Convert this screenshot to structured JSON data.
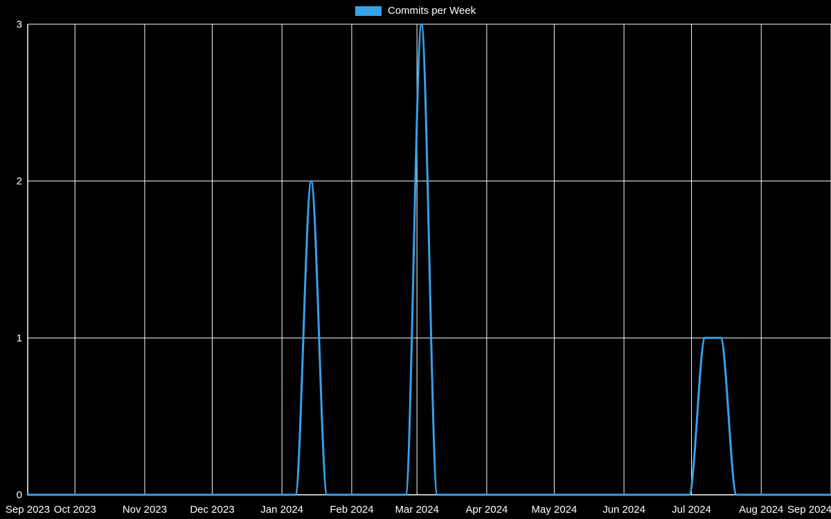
{
  "chart_data": {
    "type": "line",
    "title": "Commits per Week",
    "xlabel": "",
    "ylabel": "",
    "grid": true,
    "legend_position": "top-center",
    "background_color": "#000000",
    "grid_color": "#ffffff",
    "axis_color": "#ffffff",
    "text_color": "#ffffff",
    "ylim": [
      0,
      3
    ],
    "yticks": [
      0,
      1,
      2,
      3
    ],
    "xticks": [
      {
        "label": "Sep 2023",
        "date": "2023-09-10"
      },
      {
        "label": "Oct 2023",
        "date": "2023-10-01"
      },
      {
        "label": "Nov 2023",
        "date": "2023-11-01"
      },
      {
        "label": "Dec 2023",
        "date": "2023-12-01"
      },
      {
        "label": "Jan 2024",
        "date": "2024-01-01"
      },
      {
        "label": "Feb 2024",
        "date": "2024-02-01"
      },
      {
        "label": "Mar 2024",
        "date": "2024-03-01"
      },
      {
        "label": "Apr 2024",
        "date": "2024-04-01"
      },
      {
        "label": "May 2024",
        "date": "2024-05-01"
      },
      {
        "label": "Jun 2024",
        "date": "2024-06-01"
      },
      {
        "label": "Jul 2024",
        "date": "2024-07-01"
      },
      {
        "label": "Aug 2024",
        "date": "2024-08-01"
      },
      {
        "label": "Sep 2024",
        "date": "2024-09-01"
      }
    ],
    "x": [
      "2023-09-10",
      "2023-09-17",
      "2023-09-24",
      "2023-10-01",
      "2023-10-08",
      "2023-10-15",
      "2023-10-22",
      "2023-10-29",
      "2023-11-05",
      "2023-11-12",
      "2023-11-19",
      "2023-11-26",
      "2023-12-03",
      "2023-12-10",
      "2023-12-17",
      "2023-12-24",
      "2023-12-31",
      "2024-01-07",
      "2024-01-14",
      "2024-01-21",
      "2024-01-28",
      "2024-02-04",
      "2024-02-11",
      "2024-02-18",
      "2024-02-25",
      "2024-03-03",
      "2024-03-10",
      "2024-03-17",
      "2024-03-24",
      "2024-03-31",
      "2024-04-07",
      "2024-04-14",
      "2024-04-21",
      "2024-04-28",
      "2024-05-05",
      "2024-05-12",
      "2024-05-19",
      "2024-05-26",
      "2024-06-02",
      "2024-06-09",
      "2024-06-16",
      "2024-06-23",
      "2024-06-30",
      "2024-07-07",
      "2024-07-14",
      "2024-07-21",
      "2024-07-28",
      "2024-08-04",
      "2024-08-11",
      "2024-08-18",
      "2024-08-25",
      "2024-09-01"
    ],
    "series": [
      {
        "name": "Commits per Week",
        "color": "#36A2EB",
        "values": [
          0,
          0,
          0,
          0,
          0,
          0,
          0,
          0,
          0,
          0,
          0,
          0,
          0,
          0,
          0,
          0,
          0,
          0,
          2,
          0,
          0,
          0,
          0,
          0,
          0,
          3,
          0,
          0,
          0,
          0,
          0,
          0,
          0,
          0,
          0,
          0,
          0,
          0,
          0,
          0,
          0,
          0,
          0,
          1,
          1,
          0,
          0,
          0,
          0,
          0,
          0,
          0
        ]
      }
    ]
  }
}
